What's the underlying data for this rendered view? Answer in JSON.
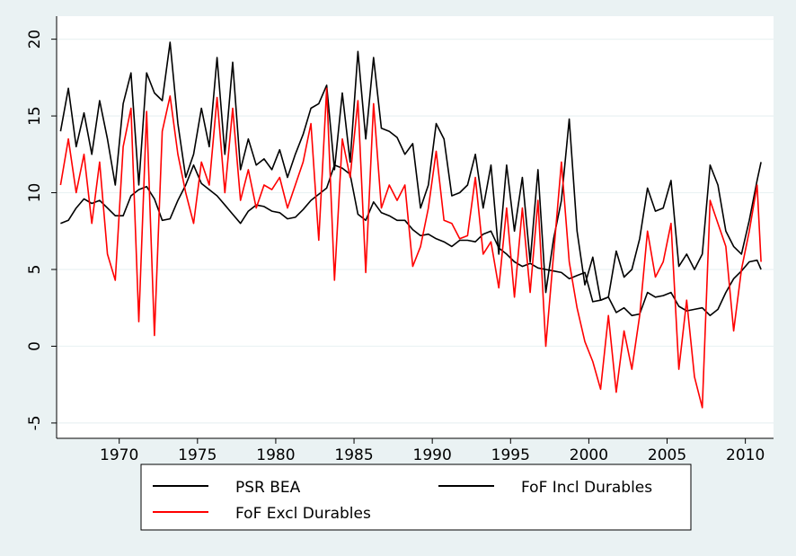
{
  "chart_data": {
    "type": "line",
    "title": "",
    "xlabel": "",
    "ylabel": "",
    "xlim": [
      1966,
      2011.8
    ],
    "ylim": [
      -6,
      21.5
    ],
    "x_ticks": [
      1970,
      1975,
      1980,
      1985,
      1990,
      1995,
      2000,
      2005,
      2010
    ],
    "x_tick_labels": [
      "1970",
      "1975",
      "1980",
      "1985",
      "1990",
      "1995",
      "2000",
      "2005",
      "2010"
    ],
    "y_ticks": [
      -5,
      0,
      5,
      10,
      15,
      20
    ],
    "y_tick_labels": [
      "-5",
      "0",
      "5",
      "10",
      "15",
      "20"
    ],
    "grid": "horizontal",
    "legend_position": "bottom",
    "colors": {
      "psr_bea": "#000000",
      "fof_incl": "#000000",
      "fof_excl": "#ff0000",
      "background": "#eaf2f3",
      "plot_area": "#ffffff",
      "grid": "#eaf2f3"
    },
    "series": [
      {
        "name": "PSR BEA",
        "color": "#000000",
        "x": [
          1966.25,
          1966.75,
          1967.25,
          1967.75,
          1968.25,
          1968.75,
          1969.25,
          1969.75,
          1970.25,
          1970.75,
          1971.25,
          1971.75,
          1972.25,
          1972.75,
          1973.25,
          1973.75,
          1974.25,
          1974.75,
          1975.25,
          1975.75,
          1976.25,
          1976.75,
          1977.25,
          1977.75,
          1978.25,
          1978.75,
          1979.25,
          1979.75,
          1980.25,
          1980.75,
          1981.25,
          1981.75,
          1982.25,
          1982.75,
          1983.25,
          1983.75,
          1984.25,
          1984.75,
          1985.25,
          1985.75,
          1986.25,
          1986.75,
          1987.25,
          1987.75,
          1988.25,
          1988.75,
          1989.25,
          1989.75,
          1990.25,
          1990.75,
          1991.25,
          1991.75,
          1992.25,
          1992.75,
          1993.25,
          1993.75,
          1994.25,
          1994.75,
          1995.25,
          1995.75,
          1996.25,
          1996.75,
          1997.25,
          1997.75,
          1998.25,
          1998.75,
          1999.25,
          1999.75,
          2000.25,
          2000.75,
          2001.25,
          2001.75,
          2002.25,
          2002.75,
          2003.25,
          2003.75,
          2004.25,
          2004.75,
          2005.25,
          2005.75,
          2006.25,
          2006.75,
          2007.25,
          2007.75,
          2008.25,
          2008.75,
          2009.25,
          2009.75,
          2010.25,
          2010.75,
          2011.0
        ],
        "values": [
          8.0,
          8.2,
          9.0,
          9.6,
          9.3,
          9.5,
          9.0,
          8.5,
          8.5,
          9.8,
          10.2,
          10.4,
          9.6,
          8.2,
          8.3,
          9.5,
          10.5,
          11.8,
          10.6,
          10.2,
          9.8,
          9.2,
          8.6,
          8.0,
          8.8,
          9.2,
          9.1,
          8.8,
          8.7,
          8.3,
          8.4,
          8.9,
          9.5,
          9.9,
          10.3,
          11.8,
          11.6,
          11.2,
          8.6,
          8.2,
          9.4,
          8.7,
          8.5,
          8.2,
          8.2,
          7.6,
          7.2,
          7.3,
          7.0,
          6.8,
          6.5,
          6.9,
          6.9,
          6.8,
          7.3,
          7.5,
          6.4,
          6.0,
          5.5,
          5.2,
          5.4,
          5.1,
          5.0,
          4.9,
          4.8,
          4.4,
          4.6,
          4.8,
          2.9,
          3.0,
          3.2,
          2.2,
          2.5,
          2.0,
          2.1,
          3.5,
          3.2,
          3.3,
          3.5,
          2.6,
          2.3,
          2.4,
          2.5,
          2.0,
          2.4,
          3.5,
          4.4,
          4.9,
          5.5,
          5.6,
          5.0
        ]
      },
      {
        "name": "FoF Incl Durables",
        "color": "#000000",
        "x": [
          1966.25,
          1966.75,
          1967.25,
          1967.75,
          1968.25,
          1968.75,
          1969.25,
          1969.75,
          1970.25,
          1970.75,
          1971.25,
          1971.75,
          1972.25,
          1972.75,
          1973.25,
          1973.75,
          1974.25,
          1974.75,
          1975.25,
          1975.75,
          1976.25,
          1976.75,
          1977.25,
          1977.75,
          1978.25,
          1978.75,
          1979.25,
          1979.75,
          1980.25,
          1980.75,
          1981.25,
          1981.75,
          1982.25,
          1982.75,
          1983.25,
          1983.75,
          1984.25,
          1984.75,
          1985.25,
          1985.75,
          1986.25,
          1986.75,
          1987.25,
          1987.75,
          1988.25,
          1988.75,
          1989.25,
          1989.75,
          1990.25,
          1990.75,
          1991.25,
          1991.75,
          1992.25,
          1992.75,
          1993.25,
          1993.75,
          1994.25,
          1994.75,
          1995.25,
          1995.75,
          1996.25,
          1996.75,
          1997.25,
          1997.75,
          1998.25,
          1998.75,
          1999.25,
          1999.75,
          2000.25,
          2000.75,
          2001.25,
          2001.75,
          2002.25,
          2002.75,
          2003.25,
          2003.75,
          2004.25,
          2004.75,
          2005.25,
          2005.75,
          2006.25,
          2006.75,
          2007.25,
          2007.75,
          2008.25,
          2008.75,
          2009.25,
          2009.75,
          2010.25,
          2010.75,
          2011.0
        ],
        "values": [
          14.0,
          16.8,
          13.0,
          15.2,
          12.5,
          16.0,
          13.5,
          10.5,
          15.8,
          17.8,
          10.5,
          17.8,
          16.5,
          16.0,
          19.8,
          14.5,
          11.0,
          12.5,
          15.5,
          13.0,
          18.8,
          12.5,
          18.5,
          11.5,
          13.5,
          11.8,
          12.2,
          11.5,
          12.8,
          11.0,
          12.5,
          13.8,
          15.5,
          15.8,
          17.0,
          11.5,
          16.5,
          12.0,
          19.2,
          13.5,
          18.8,
          14.2,
          14.0,
          13.6,
          12.5,
          13.2,
          9.0,
          10.5,
          14.5,
          13.5,
          9.8,
          10.0,
          10.5,
          12.5,
          9.0,
          11.8,
          6.0,
          11.8,
          7.5,
          11.0,
          5.5,
          11.5,
          3.5,
          7.0,
          9.5,
          14.8,
          7.5,
          4.0,
          5.8,
          3.0,
          3.2,
          6.2,
          4.5,
          5.0,
          7.0,
          10.3,
          8.8,
          9.0,
          10.8,
          5.2,
          6.0,
          5.0,
          6.0,
          11.8,
          10.5,
          7.5,
          6.5,
          6.0,
          8.2,
          10.8,
          12.0
        ]
      },
      {
        "name": "FoF Excl Durables",
        "color": "#ff0000",
        "x": [
          1966.25,
          1966.75,
          1967.25,
          1967.75,
          1968.25,
          1968.75,
          1969.25,
          1969.75,
          1970.25,
          1970.75,
          1971.25,
          1971.75,
          1972.25,
          1972.75,
          1973.25,
          1973.75,
          1974.25,
          1974.75,
          1975.25,
          1975.75,
          1976.25,
          1976.75,
          1977.25,
          1977.75,
          1978.25,
          1978.75,
          1979.25,
          1979.75,
          1980.25,
          1980.75,
          1981.25,
          1981.75,
          1982.25,
          1982.75,
          1983.25,
          1983.75,
          1984.25,
          1984.75,
          1985.25,
          1985.75,
          1986.25,
          1986.75,
          1987.25,
          1987.75,
          1988.25,
          1988.75,
          1989.25,
          1989.75,
          1990.25,
          1990.75,
          1991.25,
          1991.75,
          1992.25,
          1992.75,
          1993.25,
          1993.75,
          1994.25,
          1994.75,
          1995.25,
          1995.75,
          1996.25,
          1996.75,
          1997.25,
          1997.75,
          1998.25,
          1998.75,
          1999.25,
          1999.75,
          2000.25,
          2000.75,
          2001.25,
          2001.75,
          2002.25,
          2002.75,
          2003.25,
          2003.75,
          2004.25,
          2004.75,
          2005.25,
          2005.75,
          2006.25,
          2006.75,
          2007.25,
          2007.75,
          2008.25,
          2008.75,
          2009.25,
          2009.75,
          2010.25,
          2010.75,
          2011.0
        ],
        "values": [
          10.5,
          13.5,
          10.0,
          12.5,
          8.0,
          12.0,
          6.0,
          4.3,
          13.0,
          15.5,
          1.6,
          15.3,
          0.7,
          14.0,
          16.3,
          12.5,
          10.0,
          8.0,
          12.0,
          10.5,
          16.2,
          10.0,
          15.5,
          9.5,
          11.5,
          9.0,
          10.5,
          10.2,
          11.0,
          9.0,
          10.5,
          12.0,
          14.5,
          6.9,
          16.8,
          4.3,
          13.5,
          11.0,
          16.0,
          4.8,
          15.8,
          9.0,
          10.5,
          9.5,
          10.5,
          5.2,
          6.5,
          9.0,
          12.7,
          8.2,
          8.0,
          7.0,
          7.2,
          11.0,
          6.0,
          6.8,
          3.8,
          9.0,
          3.2,
          9.0,
          3.5,
          9.5,
          0.0,
          6.0,
          12.0,
          5.5,
          2.5,
          0.3,
          -1.0,
          -2.8,
          2.0,
          -3.0,
          1.0,
          -1.5,
          2.0,
          7.5,
          4.5,
          5.5,
          8.0,
          -1.5,
          3.0,
          -2.0,
          -4.0,
          9.5,
          8.0,
          6.5,
          1.0,
          5.0,
          7.5,
          10.5,
          5.5
        ]
      }
    ]
  },
  "legend": {
    "items": [
      "PSR BEA",
      "FoF Incl Durables",
      "FoF Excl Durables"
    ]
  }
}
